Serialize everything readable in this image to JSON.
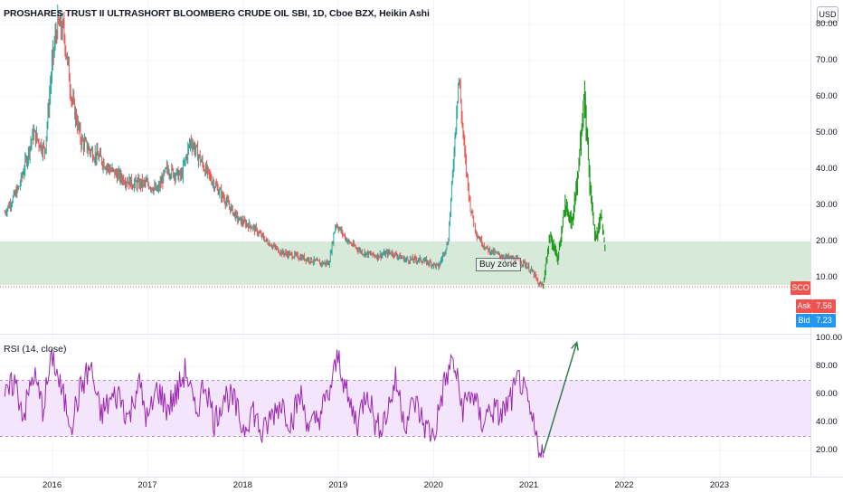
{
  "chart_title": "PROSHARES TRUST II ULTRASHORT BLOOMBERG CRUDE OIL SBI, 1D, Cboe BZX, Heikin Ashi",
  "currency_button": "USD",
  "price_axis_ticks": [
    "80.00",
    "70.00",
    "60.00",
    "50.00",
    "40.00",
    "30.00",
    "20.00",
    "10.00"
  ],
  "rsi_axis_ticks": [
    "100.00",
    "80.00",
    "60.00",
    "40.00",
    "20.00"
  ],
  "time_axis_ticks": [
    "2016",
    "2017",
    "2018",
    "2019",
    "2020",
    "2021",
    "2022",
    "2023"
  ],
  "symbol_tag": "SCO",
  "ask_label": "Ask",
  "ask_value": "7.56",
  "bid_label": "Bid",
  "bid_value": "7.23",
  "annotation_buy_zone": "Buy zone",
  "rsi_title": "RSI (14, close)",
  "colors": {
    "up": "#26a69a",
    "down": "#ef5350",
    "projection": "#1f9a1f",
    "zone_fill": "#d7ead9",
    "rsi_line": "#9c27b0",
    "rsi_band": "#f3e5fb",
    "arrow": "#2e7d4f",
    "ask_bg": "#ef5350",
    "bid_bg": "#2196f3"
  },
  "chart_data": [
    {
      "type": "candlestick-line",
      "title": "PROSHARES TRUST II ULTRASHORT BLOOMBERG CRUDE OIL SBI, 1D, Cboe BZX, Heikin Ashi",
      "x": [
        2015.5,
        2015.65,
        2015.8,
        2015.92,
        2016.0,
        2016.05,
        2016.12,
        2016.2,
        2016.3,
        2016.4,
        2016.5,
        2016.6,
        2016.7,
        2016.85,
        2017.0,
        2017.1,
        2017.2,
        2017.35,
        2017.45,
        2017.6,
        2017.72,
        2017.85,
        2017.95,
        2018.1,
        2018.25,
        2018.4,
        2018.55,
        2018.7,
        2018.8,
        2018.9,
        2018.97,
        2019.1,
        2019.25,
        2019.4,
        2019.55,
        2019.7,
        2019.85,
        2019.97,
        2020.05,
        2020.15,
        2020.2,
        2020.26,
        2020.32,
        2020.38,
        2020.45,
        2020.55,
        2020.7,
        2020.85,
        2020.95,
        2021.05,
        2021.1,
        2021.15
      ],
      "y": [
        28,
        35,
        50,
        45,
        70,
        80,
        78,
        60,
        48,
        45,
        43,
        40,
        38,
        36,
        36,
        34,
        40,
        38,
        48,
        40,
        35,
        30,
        26,
        24,
        20,
        17,
        16,
        15,
        14,
        14,
        25,
        20,
        17,
        16,
        17,
        15,
        15,
        14,
        13,
        20,
        40,
        66,
        45,
        30,
        22,
        18,
        16,
        15,
        14,
        11,
        8,
        8
      ],
      "ylim": [
        5,
        85
      ],
      "xlim": [
        2015.45,
        2023.95
      ]
    },
    {
      "type": "line",
      "title": "RSI (14, close)",
      "x": [
        2015.5,
        2015.6,
        2015.7,
        2015.8,
        2015.9,
        2016.0,
        2016.1,
        2016.2,
        2016.3,
        2016.4,
        2016.5,
        2016.6,
        2016.7,
        2016.8,
        2016.9,
        2017.0,
        2017.1,
        2017.2,
        2017.3,
        2017.4,
        2017.5,
        2017.6,
        2017.7,
        2017.8,
        2017.9,
        2018.0,
        2018.1,
        2018.2,
        2018.3,
        2018.4,
        2018.5,
        2018.6,
        2018.7,
        2018.8,
        2018.9,
        2019.0,
        2019.1,
        2019.2,
        2019.3,
        2019.4,
        2019.5,
        2019.6,
        2019.7,
        2019.8,
        2019.9,
        2020.0,
        2020.1,
        2020.2,
        2020.3,
        2020.4,
        2020.5,
        2020.6,
        2020.7,
        2020.8,
        2020.9,
        2021.0,
        2021.1,
        2021.15
      ],
      "y": [
        55,
        70,
        45,
        75,
        50,
        88,
        60,
        40,
        65,
        80,
        45,
        55,
        60,
        42,
        70,
        40,
        65,
        50,
        60,
        78,
        45,
        70,
        40,
        60,
        55,
        35,
        50,
        30,
        45,
        55,
        40,
        60,
        35,
        45,
        60,
        88,
        55,
        40,
        65,
        35,
        45,
        70,
        40,
        55,
        38,
        30,
        65,
        85,
        50,
        62,
        40,
        50,
        45,
        55,
        72,
        48,
        22,
        18
      ],
      "ylim": [
        10,
        103
      ],
      "overbought": 70,
      "oversold": 30
    }
  ],
  "drawings": {
    "buy_zone_range": [
      8,
      20
    ],
    "projection": {
      "x_start": 2021.15,
      "x_end": 2021.8,
      "y_peak": 62
    },
    "rsi_arrow": {
      "x_start": 2021.15,
      "y_start": 18,
      "x_end": 2021.5,
      "y_end": 97
    }
  }
}
